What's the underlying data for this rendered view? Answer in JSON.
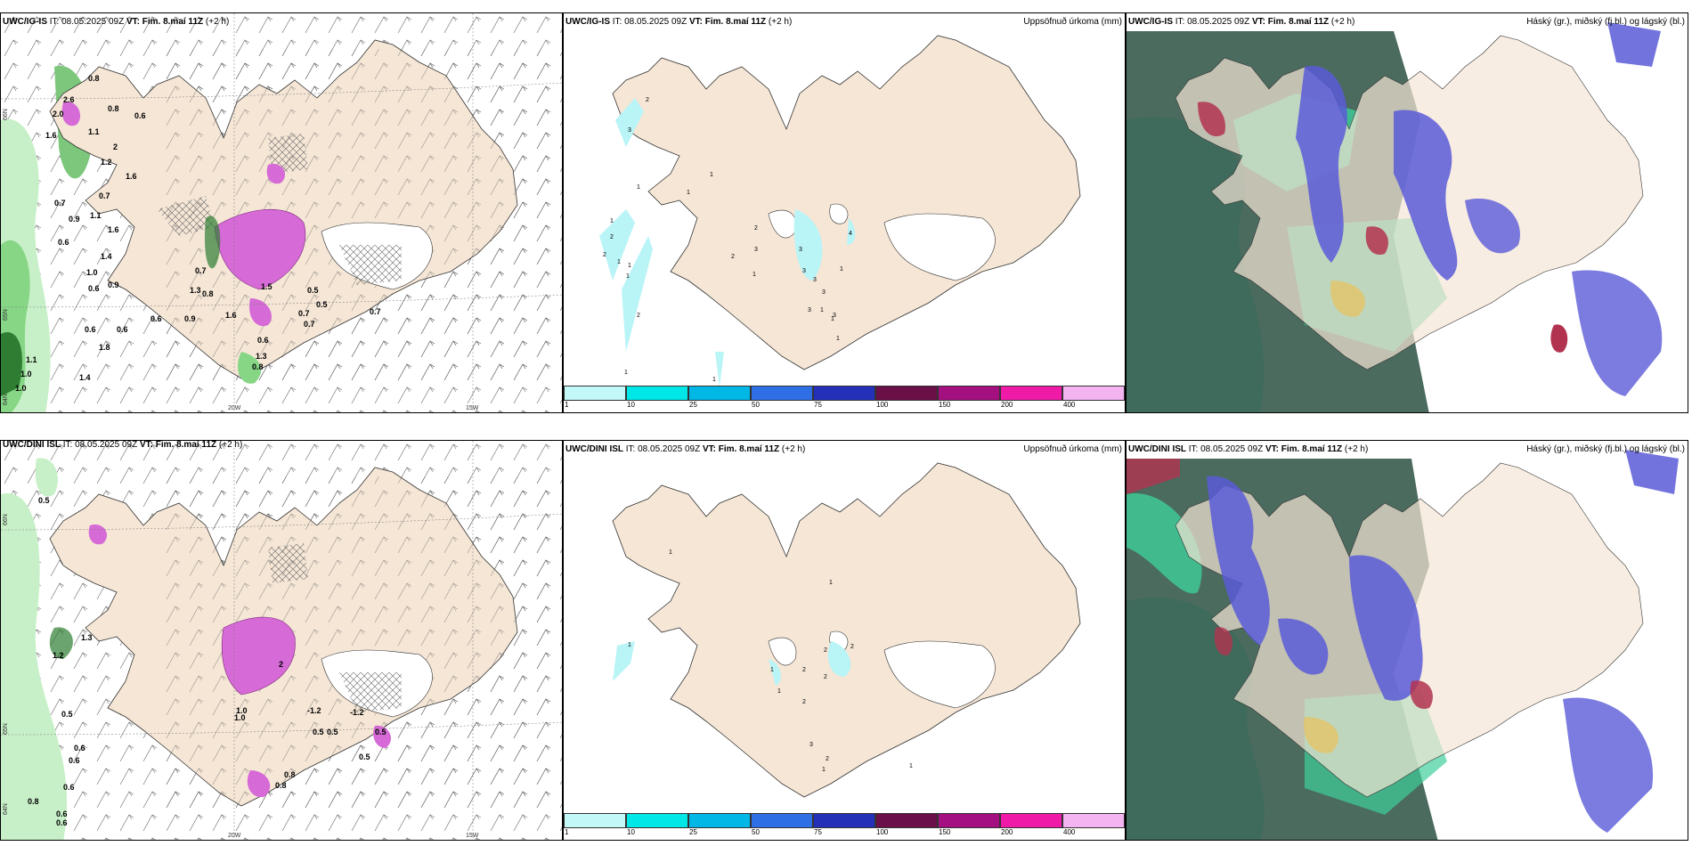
{
  "colors": {
    "land": "#f5e6d6",
    "snow": "#ffffff",
    "green_light": "#c8f0c8",
    "green_dark": "#2e7d32",
    "magenta": "#d66ad6",
    "precip_cyan": "#b9f4f7",
    "cloud_high_grey": "#4b6b5e",
    "cloud_mid_green": "#3fcf9a",
    "cloud_low_blue": "#5a5ad8",
    "cloud_red": "#b2334f"
  },
  "rows": [
    {
      "model": "UWC/IG-IS",
      "it_prefix": "IT:",
      "it_value": "08.05.2025 09Z",
      "vt_label": "VT:",
      "vt_value": "Fim. 8.maí 11Z",
      "lead": "(+2 h)",
      "wind_numbers": [
        "0.8",
        "2.6",
        "2.0",
        "0.8",
        "0.6",
        "1.6",
        "1.1",
        "2",
        "1.2",
        "1.6",
        "0.7",
        "0.7",
        "1.1",
        "0.9",
        "1.6",
        "0.6",
        "1.4",
        "0.9",
        "1.0",
        "0.6",
        "0.6",
        "0.6",
        "1.8",
        "1.1",
        "1.0",
        "1.0",
        "1.4",
        "0.6",
        "0.9",
        "1.3",
        "1.6",
        "0.7",
        "0.8",
        "0.5",
        "0.5",
        "0.7",
        "0.7",
        "0.6",
        "1.3",
        "0.8",
        "1.5",
        "0.7"
      ],
      "precip_numbers": [
        "2",
        "3",
        "1",
        "1",
        "1",
        "1",
        "2",
        "2",
        "1",
        "1",
        "1",
        "2",
        "1",
        "1",
        "2",
        "2",
        "3",
        "3",
        "3",
        "3",
        "1",
        "3",
        "3",
        "1",
        "1",
        "3",
        "4",
        "1",
        "1"
      ],
      "lon_labels": [
        "20W",
        "15W"
      ],
      "lat_labels": [
        "66N",
        "65N",
        "64N"
      ]
    },
    {
      "model": "UWC/DINI ISL",
      "it_prefix": "IT:",
      "it_value": "08.05.2025 09Z",
      "vt_label": "VT:",
      "vt_value": "Fim. 8.maí 11Z",
      "lead": "(+2 h)",
      "wind_numbers": [
        "0.5",
        "1.2",
        "1.3",
        "1.0",
        "0.5",
        "0.6",
        "0.6",
        "0.6",
        "0.8",
        "0.6",
        "2",
        "1.0",
        "-1.2",
        "-1.2",
        "0.5",
        "0.5",
        "0.5",
        "0.5",
        "0.8",
        "0.8",
        "0.6"
      ],
      "precip_numbers": [
        "1",
        "1",
        "1",
        "2",
        "1",
        "2",
        "2",
        "2",
        "1",
        "2",
        "3",
        "2",
        "1",
        "1"
      ],
      "lon_labels": [
        "20W",
        "15W"
      ],
      "lat_labels": [
        "66N",
        "65N",
        "64N"
      ]
    }
  ],
  "precip_title": "Uppsöfnuð úrkoma (mm)",
  "cloud_title": "Háský (gr.), miðský (fj.bl.) og lágský (bl.)",
  "colorbar": {
    "colors": [
      "#c2f8f8",
      "#00e7e7",
      "#00b7e6",
      "#2f6fe6",
      "#2430b8",
      "#6b0f48",
      "#a41080",
      "#ef1aa8",
      "#f4b3f1"
    ],
    "ticks": [
      "1",
      "10",
      "25",
      "50",
      "75",
      "100",
      "150",
      "200",
      "400"
    ]
  }
}
